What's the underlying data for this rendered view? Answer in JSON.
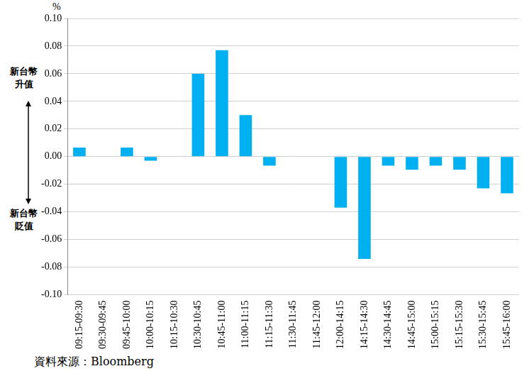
{
  "chart_data": {
    "type": "bar",
    "y_label": "%",
    "annotations": [
      "新台幣\n升值",
      "新台幣\n貶值"
    ],
    "source": "資料來源：Bloomberg",
    "categories": [
      "09:15-09:30",
      "09:30-09:45",
      "09:45-10:00",
      "10:00-10:15",
      "10:15-10:30",
      "10:30-10:45",
      "10:45-11:00",
      "11:00-11:15",
      "11:15-11:30",
      "11:30-11:45",
      "11:45-12:00",
      "12:00-14:15",
      "14:15-14:30",
      "14:30-14:45",
      "14:45-15:00",
      "15:00-15:15",
      "15:15-15:30",
      "15:30-15:45",
      "15:45-16:00"
    ],
    "values": [
      0.0065,
      0,
      0.0065,
      -0.003,
      0,
      0.06,
      0.077,
      0.03,
      -0.0065,
      0,
      0,
      -0.037,
      -0.074,
      -0.0065,
      -0.0095,
      -0.0065,
      -0.0095,
      -0.023,
      -0.0265
    ],
    "color": "#00b0f0",
    "ylim": [
      -0.1,
      0.1
    ],
    "yticks": [
      {
        "value": -0.1,
        "label": "-0.10"
      },
      -0.08,
      -0.06,
      -0.04,
      -0.02,
      {
        "value": 0,
        "label": "0.00"
      },
      0.02,
      0.04,
      0.06,
      0.08,
      {
        "value": 0.1,
        "label": "0.10"
      }
    ],
    "grid": true
  }
}
